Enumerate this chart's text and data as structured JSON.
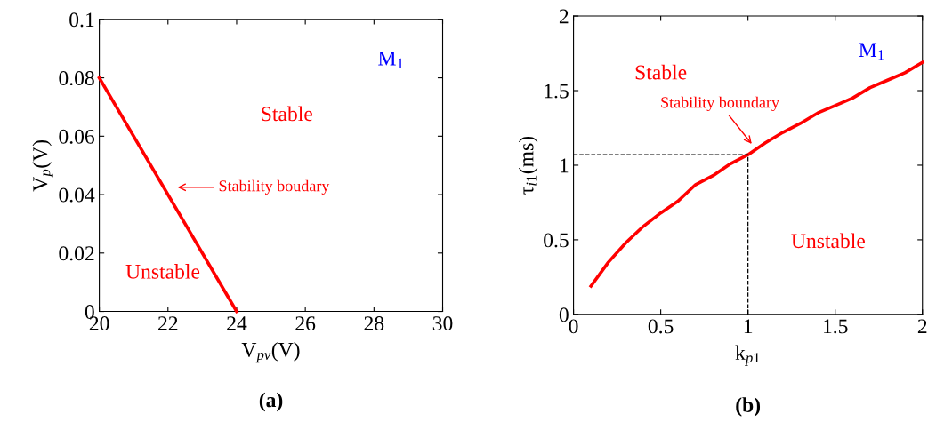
{
  "chart_data": [
    {
      "type": "line",
      "xlabel": "V$_{pv}$(V)",
      "ylabel": "V$_{p}$(V)",
      "xlim": [
        20,
        30
      ],
      "ylim": [
        0,
        0.1
      ],
      "xticks": [
        20,
        22,
        24,
        26,
        28,
        30
      ],
      "yticks": [
        0,
        0.02,
        0.04,
        0.06,
        0.08,
        0.1
      ],
      "grid": false,
      "legend": false,
      "marker": "none",
      "line_style": "solid",
      "series": [
        {
          "color": "#ff0000",
          "x": [
            20,
            24
          ],
          "values": [
            0.08,
            0
          ]
        }
      ],
      "annotations": [
        "Stability boudary",
        "Stable",
        "Unstable",
        "M$_{1}$",
        "(a)"
      ]
    },
    {
      "type": "line",
      "xlabel": "k$_{p1}$",
      "ylabel": "τ$_{i1}$(ms)",
      "xlim": [
        0,
        2
      ],
      "ylim": [
        0,
        2
      ],
      "xticks": [
        0,
        0.5,
        1,
        1.5,
        2
      ],
      "yticks": [
        0,
        0.5,
        1,
        1.5,
        2
      ],
      "grid": false,
      "legend": false,
      "marker": "none",
      "line_style": "solid",
      "series": [
        {
          "color": "#ff0000",
          "x": [
            0.1,
            0.2,
            0.3,
            0.4,
            0.5,
            0.6,
            0.7,
            0.8,
            0.9,
            1.0,
            1.1,
            1.2,
            1.3,
            1.4,
            1.5,
            1.6,
            1.7,
            1.8,
            1.9,
            2.0
          ],
          "values": [
            0.19,
            0.35,
            0.48,
            0.59,
            0.68,
            0.76,
            0.87,
            0.93,
            1.01,
            1.07,
            1.15,
            1.22,
            1.28,
            1.35,
            1.4,
            1.45,
            1.52,
            1.57,
            1.62,
            1.69
          ]
        },
        {
          "color": "#000000",
          "line_style": "dashed",
          "x": [
            0,
            1,
            1
          ],
          "values": [
            1.07,
            1.07,
            0
          ]
        }
      ],
      "annotations": [
        {
          "text": "Stability boundary",
          "x": 1.03,
          "y": 1.13
        },
        "Stable",
        "Unstable",
        "M$_{1}$",
        "(b)"
      ]
    }
  ]
}
